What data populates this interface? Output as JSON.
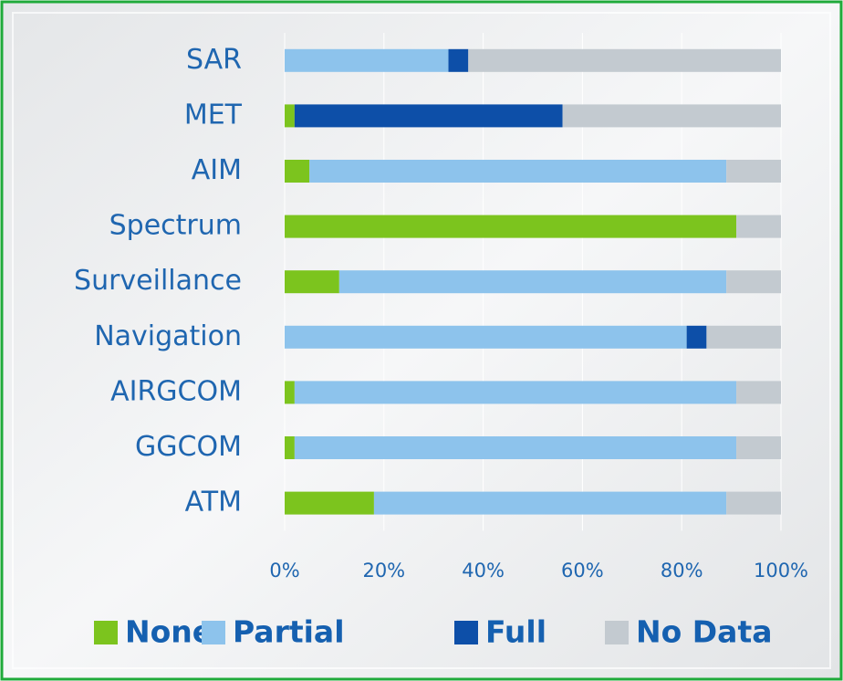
{
  "chart_data": {
    "type": "stacked-bar-horizontal",
    "categories": [
      "SAR",
      "MET",
      "AIM",
      "Spectrum",
      "Surveillance",
      "Navigation",
      "AIRGCOM",
      "GGCOM",
      "ATM"
    ],
    "series": [
      {
        "name": "None",
        "color": "#7cc41e",
        "values": [
          0,
          2,
          5,
          91,
          11,
          0,
          2,
          2,
          18
        ]
      },
      {
        "name": "Partial",
        "color": "#8dc3ec",
        "values": [
          33,
          0,
          84,
          0,
          78,
          81,
          89,
          89,
          71
        ]
      },
      {
        "name": "Full",
        "color": "#0d4fa8",
        "values": [
          4,
          54,
          0,
          0,
          0,
          4,
          0,
          0,
          0
        ]
      },
      {
        "name": "No Data",
        "color": "#c3cad0",
        "values": [
          63,
          44,
          11,
          9,
          11,
          15,
          9,
          9,
          11
        ]
      }
    ],
    "xlim": [
      0,
      100
    ],
    "xticks": [
      {
        "value": 0,
        "label": "0%"
      },
      {
        "value": 20,
        "label": "20%"
      },
      {
        "value": 40,
        "label": "40%"
      },
      {
        "value": 60,
        "label": "60%"
      },
      {
        "value": 80,
        "label": "80%"
      },
      {
        "value": 100,
        "label": "100%"
      }
    ],
    "grid": true,
    "legend": "bottom"
  }
}
